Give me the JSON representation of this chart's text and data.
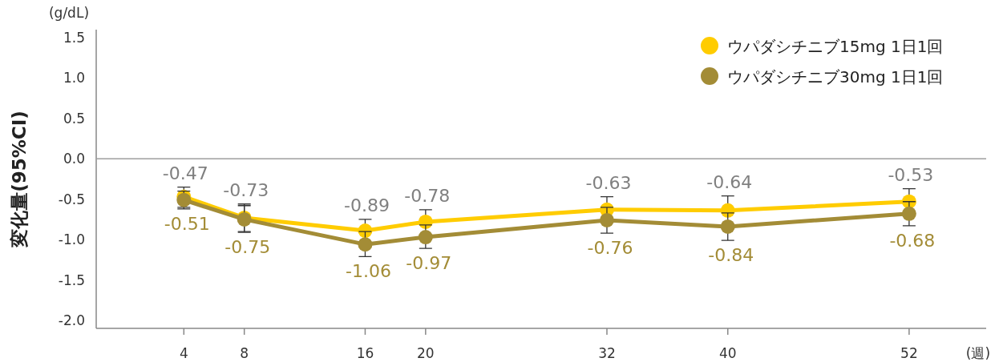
{
  "chart_data": {
    "type": "line",
    "ylabel": "変化量(95%CI)",
    "xlabel": "(週)",
    "annotations": [
      "(g/dL)"
    ],
    "x": [
      4,
      8,
      16,
      20,
      32,
      40,
      52
    ],
    "xlim": [
      -1.8,
      57.1
    ],
    "ylim": [
      -2.1,
      1.6
    ],
    "xticks": [
      4,
      8,
      16,
      20,
      32,
      40,
      52
    ],
    "yticks": [
      {
        "value": 1.5,
        "label": "1.5"
      },
      {
        "value": 1.0,
        "label": "1.0"
      },
      {
        "value": 0.5,
        "label": "0.5"
      },
      {
        "value": 0.0,
        "label": "0.0"
      },
      {
        "value": -0.5,
        "label": "-0.5"
      },
      {
        "value": -1.0,
        "label": "-1.0"
      },
      {
        "value": -1.5,
        "label": "-1.5"
      },
      {
        "value": -2.0,
        "label": "-2.0"
      }
    ],
    "ref_lines": [
      {
        "axis": "y",
        "value": 0,
        "color": "#9e9e9e"
      }
    ],
    "series": [
      {
        "name": "ウパダシチニブ15mg 1日1回",
        "color": "#ffcc00",
        "values": [
          -0.47,
          -0.73,
          -0.89,
          -0.78,
          -0.63,
          -0.64,
          -0.53
        ],
        "errors": [
          [
            -0.6,
            -0.35
          ],
          [
            -0.9,
            -0.56
          ],
          [
            -0.89,
            -0.75
          ],
          [
            -0.78,
            -0.63
          ],
          [
            -0.63,
            -0.47
          ],
          [
            -0.64,
            -0.46
          ],
          [
            -0.53,
            -0.37
          ]
        ]
      },
      {
        "name": "ウパダシチニブ30mg 1日1回",
        "color": "#a38c36",
        "values": [
          -0.51,
          -0.75,
          -1.06,
          -0.97,
          -0.76,
          -0.84,
          -0.68
        ],
        "errors": [
          [
            -0.62,
            -0.4
          ],
          [
            -0.91,
            -0.58
          ],
          [
            -1.21,
            -0.9
          ],
          [
            -1.11,
            -0.82
          ],
          [
            -0.92,
            -0.6
          ],
          [
            -1.01,
            -0.67
          ],
          [
            -0.83,
            -0.53
          ]
        ]
      }
    ],
    "data_labels": true,
    "marker": "circle",
    "line_style": "solid",
    "legend": "top right",
    "grid": false
  }
}
